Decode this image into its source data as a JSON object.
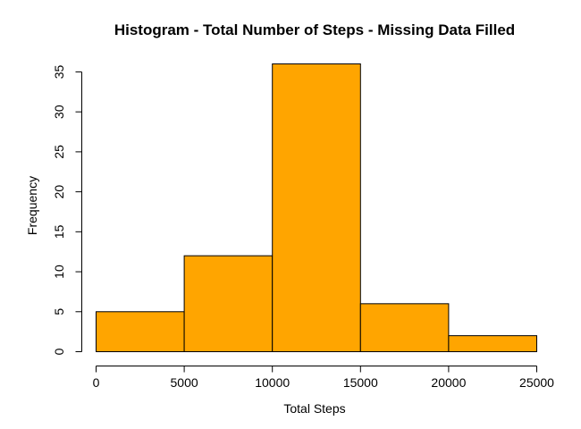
{
  "chart_data": {
    "type": "bar",
    "subtype": "histogram",
    "title": "Histogram - Total Number of Steps - Missing Data Filled",
    "xlabel": "Total Steps",
    "ylabel": "Frequency",
    "bins": [
      {
        "from": 0,
        "to": 5000,
        "count": 5
      },
      {
        "from": 5000,
        "to": 10000,
        "count": 12
      },
      {
        "from": 10000,
        "to": 15000,
        "count": 36
      },
      {
        "from": 15000,
        "to": 20000,
        "count": 6
      },
      {
        "from": 20000,
        "to": 25000,
        "count": 2
      }
    ],
    "xlim": [
      0,
      25000
    ],
    "ylim": [
      0,
      36
    ],
    "x_ticks": [
      0,
      5000,
      10000,
      15000,
      20000,
      25000
    ],
    "y_ticks": [
      0,
      5,
      10,
      15,
      20,
      25,
      30,
      35
    ],
    "bar_color": "#FFA500",
    "bar_border_color": "#000000",
    "grid": false,
    "legend": "none"
  }
}
